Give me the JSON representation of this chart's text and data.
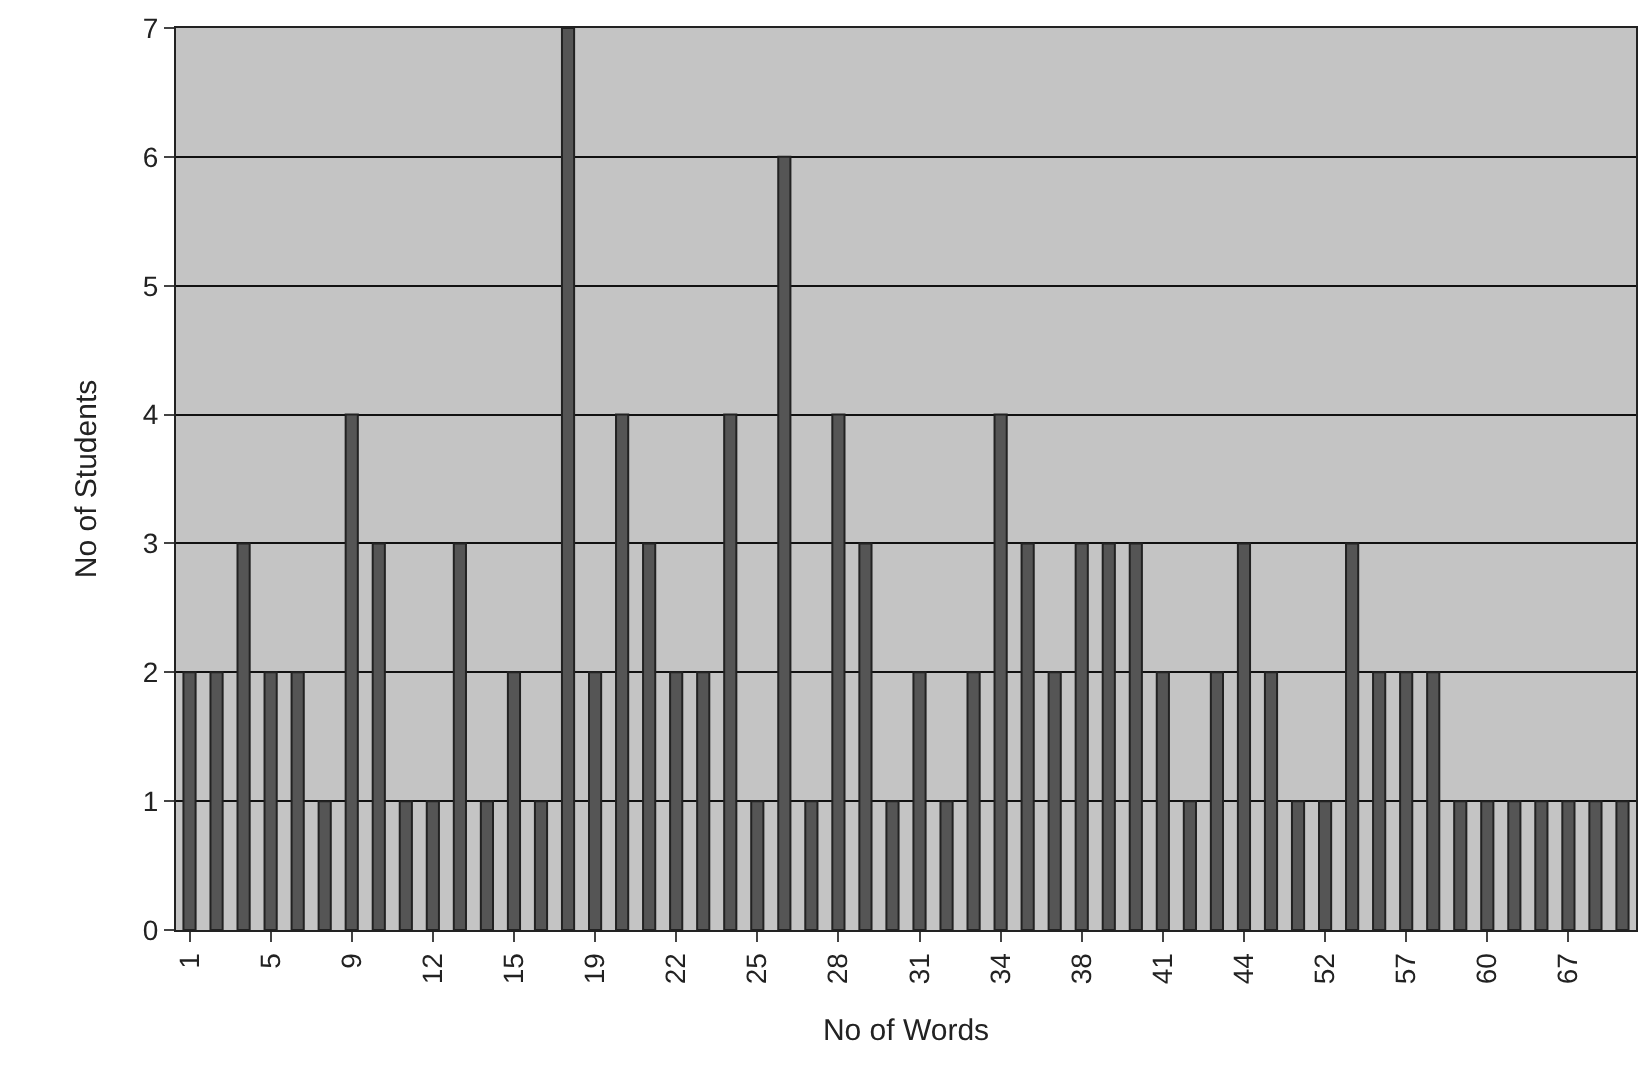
{
  "chart_data": {
    "type": "bar",
    "xlabel": "No of Words",
    "ylabel": "No of Students",
    "categories": [
      "1",
      null,
      null,
      "5",
      null,
      null,
      "9",
      null,
      null,
      "12",
      null,
      null,
      "15",
      null,
      null,
      "19",
      null,
      null,
      "22",
      null,
      null,
      "25",
      null,
      null,
      "28",
      null,
      null,
      "31",
      null,
      null,
      "34",
      null,
      null,
      "38",
      null,
      null,
      "41",
      null,
      null,
      "44",
      null,
      null,
      "52",
      null,
      null,
      "57",
      null,
      null,
      "60",
      null,
      null,
      "67",
      null,
      null
    ],
    "values": [
      2,
      2,
      3,
      2,
      2,
      1,
      4,
      3,
      1,
      1,
      3,
      1,
      2,
      1,
      7,
      2,
      4,
      3,
      2,
      2,
      4,
      1,
      6,
      1,
      4,
      3,
      1,
      2,
      1,
      2,
      4,
      3,
      2,
      3,
      3,
      3,
      2,
      1,
      2,
      3,
      2,
      1,
      1,
      3,
      2,
      2,
      2,
      1,
      1,
      1,
      1,
      1,
      1,
      1
    ],
    "color": "#555555",
    "ylim": [
      0,
      7
    ],
    "yticks": [
      0,
      1,
      2,
      3,
      4,
      5,
      6,
      7
    ],
    "grid": "y",
    "legend": false
  }
}
